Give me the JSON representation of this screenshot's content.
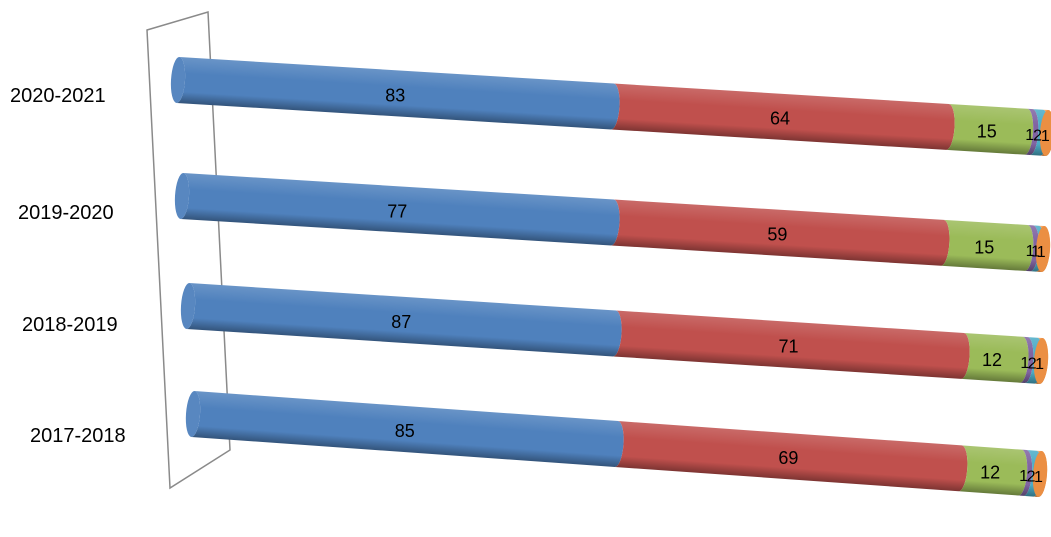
{
  "chart_data": {
    "type": "bar",
    "orientation": "horizontal",
    "stacked": true,
    "shape": "cylinder",
    "perspective": "3d",
    "categories": [
      "2017-2018",
      "2018-2019",
      "2019-2020",
      "2020-2021"
    ],
    "series": [
      {
        "color": "#4f81bd",
        "values": [
          85,
          87,
          77,
          83
        ]
      },
      {
        "color": "#c0504d",
        "values": [
          69,
          71,
          59,
          64
        ]
      },
      {
        "color": "#9bbb59",
        "values": [
          12,
          12,
          15,
          15
        ]
      },
      {
        "color": "#8064a2",
        "values": [
          1,
          1,
          1,
          1
        ]
      },
      {
        "color": "#4bacc6",
        "values": [
          2,
          2,
          1,
          2
        ]
      },
      {
        "color": "#f79646",
        "values": [
          1,
          1,
          1,
          1
        ]
      }
    ],
    "data_labels": true,
    "legend": "none",
    "grid": false
  }
}
